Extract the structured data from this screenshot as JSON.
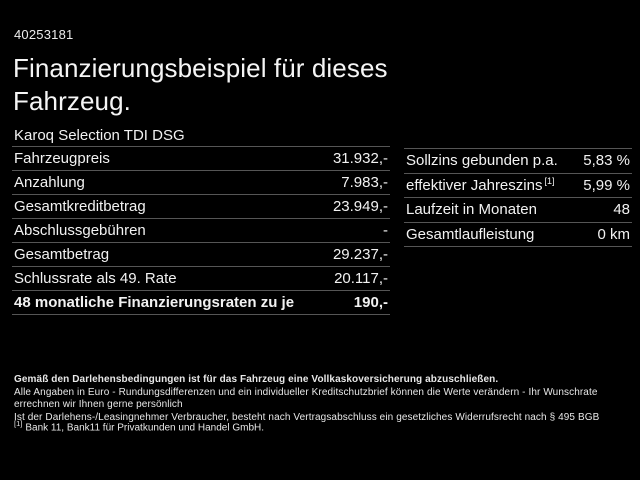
{
  "page": {
    "vehicle_id": "40253181",
    "title": "Finanzierungsbeispiel für dieses Fahrzeug.",
    "subtitle": "Karoq Selection TDI DSG"
  },
  "left_table": {
    "rows": [
      {
        "label": "Fahrzeugpreis",
        "value": "31.932,-"
      },
      {
        "label": "Anzahlung",
        "value": "7.983,-"
      },
      {
        "label": "Gesamtkreditbetrag",
        "value": "23.949,-"
      },
      {
        "label": "Abschlussgebühren",
        "value": "-"
      },
      {
        "label": "Gesamtbetrag",
        "value": "29.237,-"
      },
      {
        "label": "Schlussrate als 49. Rate",
        "value": "20.117,-"
      },
      {
        "label": "48 monatliche Finanzierungsraten zu je",
        "value": "190,-"
      }
    ]
  },
  "right_table": {
    "rows": [
      {
        "label": "Sollzins gebunden p.a.",
        "sup": "",
        "value": "5,83 %"
      },
      {
        "label": "effektiver Jahreszins",
        "sup": "[1]",
        "value": "5,99 %"
      },
      {
        "label": "Laufzeit in Monaten",
        "sup": "",
        "value": "48"
      },
      {
        "label": "Gesamtlaufleistung",
        "sup": "",
        "value": "0 km"
      }
    ]
  },
  "fine_print": {
    "line1": "Gemäß den Darlehensbedingungen ist für das Fahrzeug eine Vollkaskoversicherung abzuschließen.",
    "line2": "Alle Angaben in Euro - Rundungsdifferenzen und ein individueller Kreditschutzbrief können die Werte verändern - Ihr Wunschrate errechnen wir Ihnen gerne persönlich",
    "line3": "Ist der Darlehens-/Leasingnehmer Verbraucher, besteht nach Vertragsabschluss ein gesetzliches Widerrufsrecht nach § 495 BGB",
    "footnote_marker": "[1]",
    "footnote_text": "Bank 11, Bank11 für Privatkunden und Handel GmbH."
  },
  "colors": {
    "background": "#000000",
    "text": "#f2f2f2",
    "divider": "#555555"
  }
}
